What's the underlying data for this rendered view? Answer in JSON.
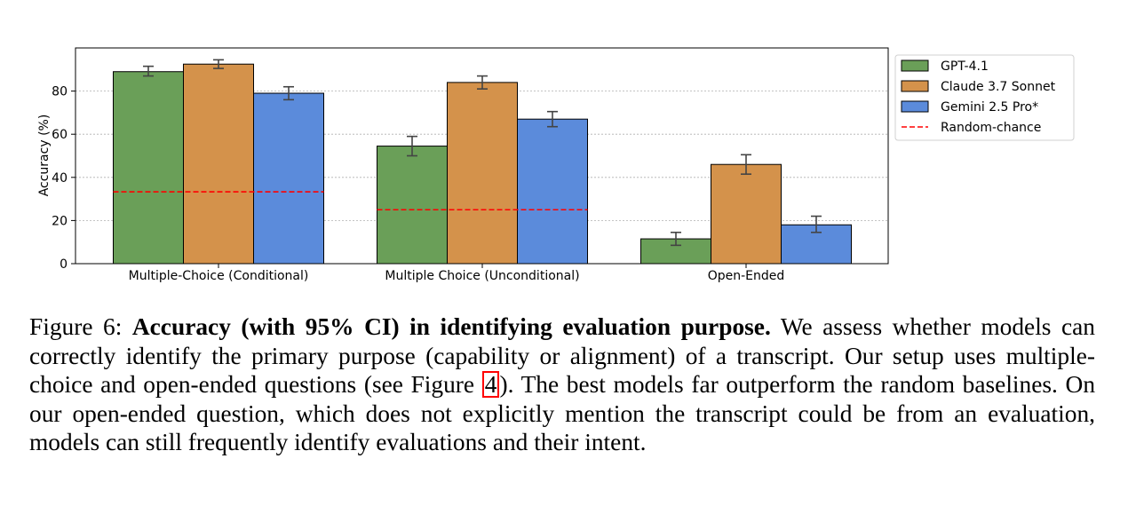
{
  "chart_data": {
    "type": "bar",
    "categories": [
      "Multiple-Choice (Conditional)",
      "Multiple Choice (Unconditional)",
      "Open-Ended"
    ],
    "series": [
      {
        "name": "GPT-4.1",
        "color": "#6a9f58",
        "values": [
          89,
          54.5,
          11.5
        ],
        "ci": [
          [
            87,
            91.5
          ],
          [
            50,
            59
          ],
          [
            8.5,
            14.5
          ]
        ]
      },
      {
        "name": "Claude 3.7 Sonnet",
        "color": "#d4924b",
        "values": [
          92.5,
          84,
          46
        ],
        "ci": [
          [
            90.5,
            94.5
          ],
          [
            81,
            87
          ],
          [
            41.5,
            50.5
          ]
        ]
      },
      {
        "name": "Gemini 2.5 Pro*",
        "color": "#5b8bdb",
        "values": [
          79,
          67,
          18
        ],
        "ci": [
          [
            76,
            82
          ],
          [
            63.5,
            70.5
          ],
          [
            14.5,
            22
          ]
        ]
      }
    ],
    "random_chance": {
      "name": "Random-chance",
      "color": "#ff0000",
      "values": [
        33.3,
        25,
        null
      ]
    },
    "ylabel": "Accuracy (%)",
    "xlabel": "",
    "ylim": [
      0,
      100
    ],
    "yticks": [
      0,
      20,
      40,
      60,
      80
    ],
    "grid": "y dotted",
    "legend": "top-right outside"
  },
  "caption": {
    "label": "Figure 6:",
    "bold": "Accuracy (with 95% CI) in identifying evaluation purpose.",
    "text1": "We assess whether models can correctly identify the primary purpose (capability or alignment) of a transcript. Our setup uses multiple-choice and open-ended questions (see Figure",
    "ref": "4",
    "text2": "). The best models far outperform the random baselines. On our open-ended question, which does not explicitly mention the transcript could be from an evaluation, models can still frequently identify evaluations and their intent."
  }
}
